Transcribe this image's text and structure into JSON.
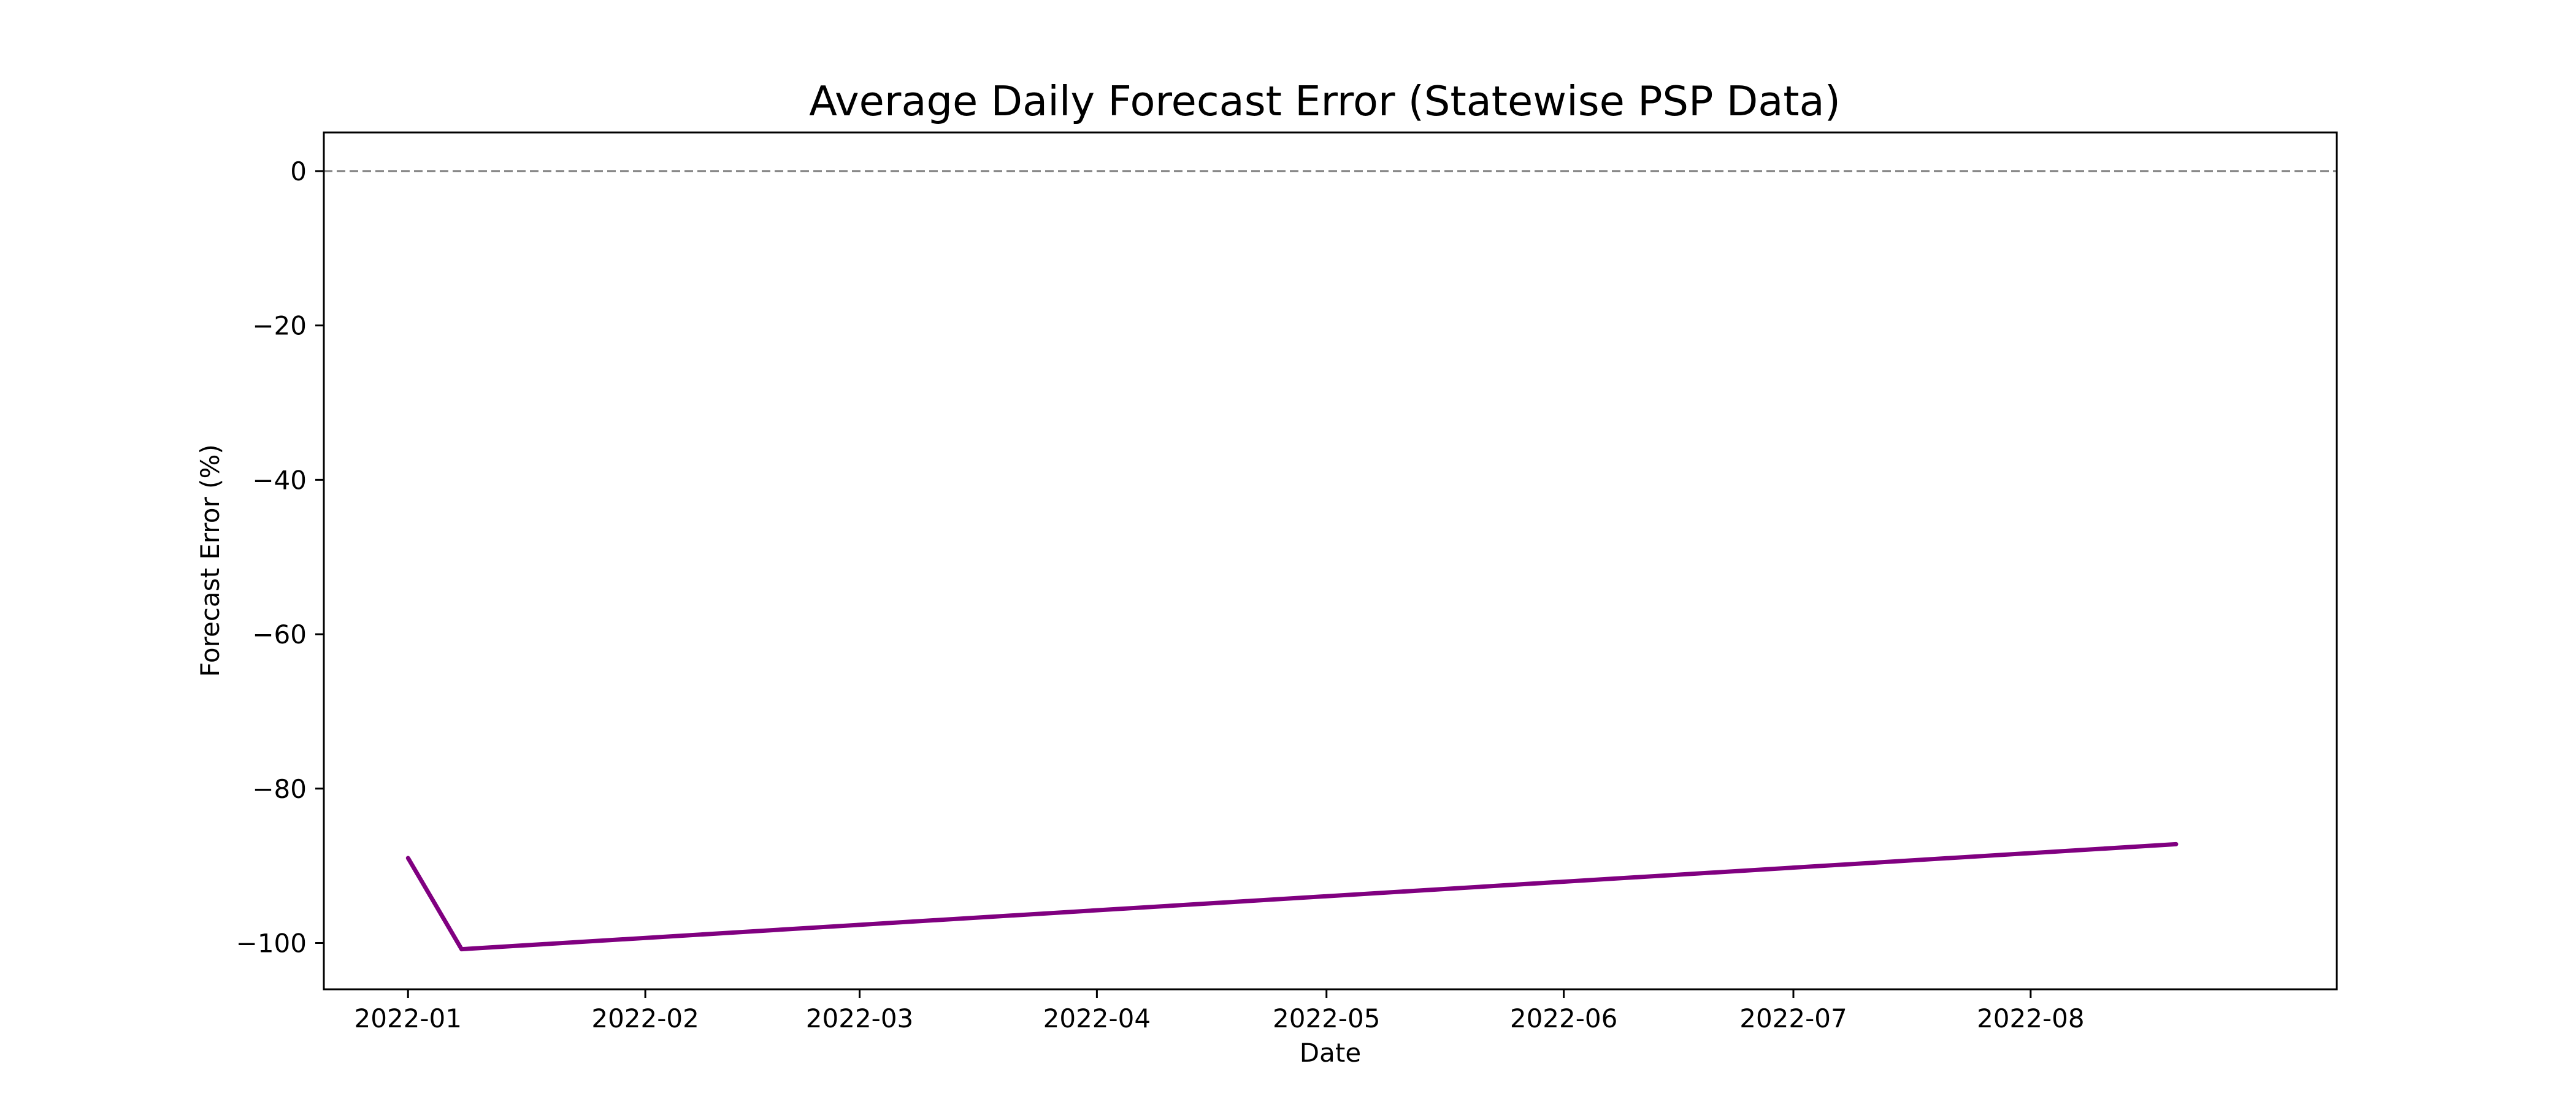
{
  "chart_data": {
    "type": "line",
    "title": "Average Daily Forecast Error (Statewise PSP Data)",
    "xlabel": "Date",
    "ylabel": "Forecast Error (%)",
    "x_tick_labels": [
      "2022-01",
      "2022-02",
      "2022-03",
      "2022-04",
      "2022-05",
      "2022-06",
      "2022-07",
      "2022-08"
    ],
    "y_ticks": [
      0,
      -20,
      -40,
      -60,
      -80,
      -100
    ],
    "y_tick_labels": [
      "0",
      "−20",
      "−40",
      "−60",
      "−80",
      "−100"
    ],
    "xlim": [
      "2021-12-21",
      "2022-09-10"
    ],
    "ylim": [
      -106,
      5
    ],
    "grid": false,
    "reference_line": {
      "y": 0,
      "style": "dashed",
      "color": "#808080"
    },
    "series": [
      {
        "color": "#800080",
        "x": [
          "2022-01-01",
          "2022-01-08",
          "2022-08-20"
        ],
        "y": [
          -89,
          -100.8,
          -87.2
        ]
      }
    ]
  }
}
